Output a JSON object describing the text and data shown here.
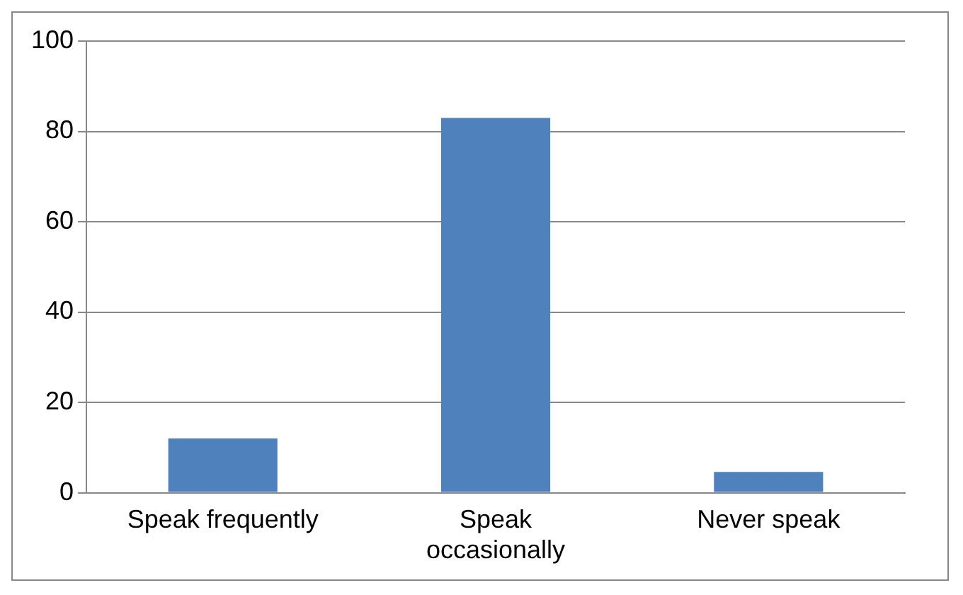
{
  "chart_data": {
    "type": "bar",
    "categories": [
      "Speak frequently",
      "Speak occasionally",
      "Never speak"
    ],
    "values": [
      12,
      83,
      4.6
    ],
    "color": "#4f81bd",
    "ylim": [
      0,
      100
    ],
    "yticks": [
      0,
      20,
      40,
      60,
      80,
      100
    ],
    "grid": "y",
    "legend": false
  }
}
